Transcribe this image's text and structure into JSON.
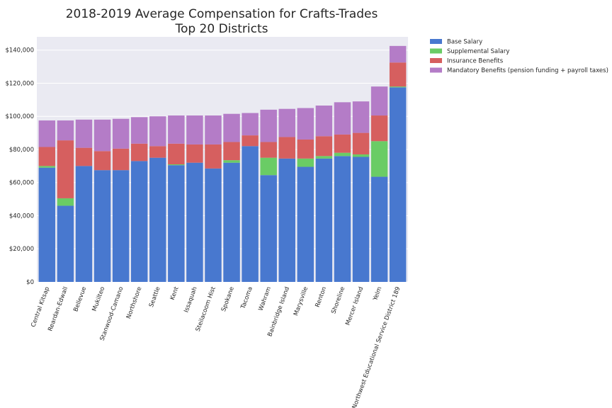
{
  "chart_data": {
    "type": "bar",
    "stacked": true,
    "title": "2018-2019 Average Compensation for Crafts-Trades",
    "subtitle": "Top 20 Districts",
    "xlabel": "",
    "ylabel": "",
    "ylim": [
      0,
      148000
    ],
    "yticks": [
      0,
      20000,
      40000,
      60000,
      80000,
      100000,
      120000,
      140000
    ],
    "ytick_labels": [
      "$0",
      "$20,000",
      "$40,000",
      "$60,000",
      "$80,000",
      "$100,000",
      "$120,000",
      "$140,000"
    ],
    "grid": true,
    "legend_position": "outside-top-right",
    "categories": [
      "Central Kitsap",
      "Reardan-Edwall",
      "Bellevue",
      "Mukilteo",
      "Stanwood-Camano",
      "Northshore",
      "Seattle",
      "Kent",
      "Issaquah",
      "Steilacoom Hist",
      "Spokane",
      "Tacoma",
      "Wahram",
      "Bainbridge Island",
      "Marysville",
      "Renton",
      "Shoreline",
      "Mercer Island",
      "Yelm",
      "Northwest Educational Service District 189"
    ],
    "series": [
      {
        "name": "Base Salary",
        "color": "#4878cf",
        "values": [
          69000,
          46000,
          70000,
          67500,
          67500,
          73000,
          75000,
          70500,
          72000,
          68500,
          72000,
          82000,
          64500,
          74500,
          69500,
          74500,
          76000,
          75500,
          63500,
          117500
        ]
      },
      {
        "name": "Supplemental Salary",
        "color": "#6acc65",
        "values": [
          1000,
          4500,
          0,
          0,
          0,
          0,
          0,
          500,
          0,
          0,
          1500,
          0,
          10500,
          0,
          5000,
          1500,
          2000,
          1500,
          21500,
          500
        ]
      },
      {
        "name": "Insurance Benefits",
        "color": "#d65f5f",
        "values": [
          11500,
          35000,
          11000,
          11500,
          13000,
          10500,
          7000,
          12500,
          11000,
          14500,
          11000,
          6500,
          9500,
          13000,
          11500,
          12000,
          11000,
          13000,
          15500,
          14500
        ]
      },
      {
        "name": "Mandatory Benefits (pension funding + payroll taxes)",
        "color": "#b47cc7",
        "values": [
          16000,
          12000,
          17000,
          19000,
          18000,
          16000,
          18000,
          17000,
          17500,
          17500,
          17000,
          13500,
          19500,
          17000,
          19000,
          18500,
          19500,
          19000,
          17500,
          10000
        ]
      }
    ]
  }
}
